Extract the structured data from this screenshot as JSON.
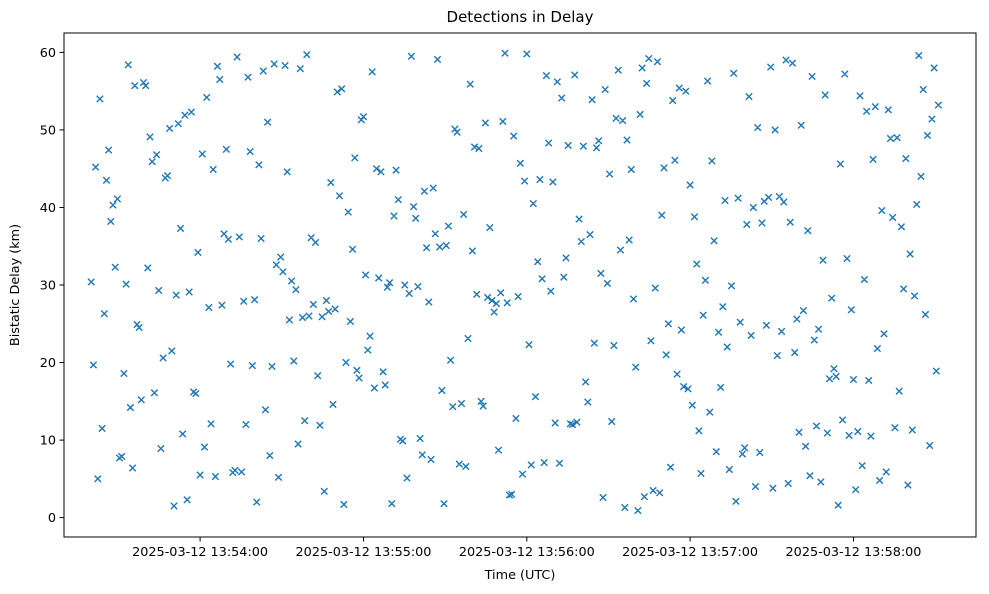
{
  "chart_data": {
    "type": "scatter",
    "title": "Detections in Delay",
    "xlabel": "Time (UTC)",
    "ylabel": "Bistatic Delay (km)",
    "marker": "x",
    "marker_color": "#1f77b4",
    "grid": false,
    "legend": "none",
    "x_unit": "seconds since 2025-03-12 13:53:00 UTC",
    "xlim": [
      10,
      345
    ],
    "ylim": [
      -2.5,
      62.5
    ],
    "x_ticks": [
      {
        "value": 60,
        "label": "2025-03-12 13:54:00"
      },
      {
        "value": 120,
        "label": "2025-03-12 13:55:00"
      },
      {
        "value": 180,
        "label": "2025-03-12 13:56:00"
      },
      {
        "value": 240,
        "label": "2025-03-12 13:57:00"
      },
      {
        "value": 300,
        "label": "2025-03-12 13:58:00"
      }
    ],
    "y_ticks": [
      0,
      10,
      20,
      30,
      40,
      50,
      60
    ],
    "points": [
      [
        20,
        30.4
      ],
      [
        20.8,
        19.7
      ],
      [
        21.6,
        45.2
      ],
      [
        22.4,
        5
      ],
      [
        23.2,
        54
      ],
      [
        24,
        11.5
      ],
      [
        24.8,
        26.3
      ],
      [
        25.6,
        43.5
      ],
      [
        26.4,
        47.4
      ],
      [
        27.2,
        38.2
      ],
      [
        28,
        40.3
      ],
      [
        28.8,
        32.3
      ],
      [
        29.6,
        41.1
      ],
      [
        30.4,
        7.7
      ],
      [
        31.2,
        7.9
      ],
      [
        32,
        18.6
      ],
      [
        32.8,
        30.1
      ],
      [
        33.6,
        58.4
      ],
      [
        34.4,
        14.2
      ],
      [
        35.2,
        6.4
      ],
      [
        36,
        55.7
      ],
      [
        36.8,
        24.9
      ],
      [
        37.6,
        24.5
      ],
      [
        38.4,
        15.2
      ],
      [
        39.2,
        56.1
      ],
      [
        40,
        55.7
      ],
      [
        40.8,
        32.2
      ],
      [
        41.6,
        49.1
      ],
      [
        42.4,
        45.9
      ],
      [
        43.2,
        16.1
      ],
      [
        44,
        46.8
      ],
      [
        44.8,
        29.3
      ],
      [
        45.6,
        8.9
      ],
      [
        46.4,
        20.6
      ],
      [
        47.2,
        43.8
      ],
      [
        48,
        44.1
      ],
      [
        48.8,
        50.2
      ],
      [
        49.6,
        21.5
      ],
      [
        50.4,
        1.5
      ],
      [
        51.2,
        28.7
      ],
      [
        52,
        50.8
      ],
      [
        52.8,
        37.3
      ],
      [
        53.6,
        10.8
      ],
      [
        54.4,
        51.9
      ],
      [
        55.2,
        2.3
      ],
      [
        56,
        29.1
      ],
      [
        56.8,
        52.3
      ],
      [
        57.6,
        16.2
      ],
      [
        58.4,
        16
      ],
      [
        59.2,
        34.2
      ],
      [
        60,
        5.5
      ],
      [
        60.8,
        46.9
      ],
      [
        61.6,
        9.1
      ],
      [
        62.4,
        54.2
      ],
      [
        63.2,
        27.1
      ],
      [
        64,
        12.1
      ],
      [
        64.8,
        44.9
      ],
      [
        65.6,
        5.3
      ],
      [
        66.4,
        58.2
      ],
      [
        67.2,
        56.5
      ],
      [
        68,
        27.4
      ],
      [
        68.8,
        36.6
      ],
      [
        69.6,
        47.5
      ],
      [
        70.4,
        35.9
      ],
      [
        71.2,
        19.8
      ],
      [
        72,
        5.8
      ],
      [
        72.8,
        6.1
      ],
      [
        73.6,
        59.4
      ],
      [
        74.4,
        36.2
      ],
      [
        75.2,
        5.9
      ],
      [
        76,
        27.9
      ],
      [
        76.8,
        12
      ],
      [
        77.6,
        56.8
      ],
      [
        78.4,
        47.2
      ],
      [
        79.2,
        19.6
      ],
      [
        80,
        28.1
      ],
      [
        80.8,
        2
      ],
      [
        81.6,
        45.5
      ],
      [
        82.4,
        36
      ],
      [
        83.2,
        57.6
      ],
      [
        84,
        13.9
      ],
      [
        84.8,
        51
      ],
      [
        85.6,
        8
      ],
      [
        86.4,
        19.5
      ],
      [
        87.2,
        58.5
      ],
      [
        88,
        32.6
      ],
      [
        88.8,
        5.2
      ],
      [
        89.6,
        33.6
      ],
      [
        90.4,
        31.7
      ],
      [
        91.2,
        58.3
      ],
      [
        92,
        44.6
      ],
      [
        92.8,
        25.5
      ],
      [
        93.6,
        30.5
      ],
      [
        94.4,
        20.2
      ],
      [
        95.2,
        29.4
      ],
      [
        96,
        9.5
      ],
      [
        96.8,
        57.9
      ],
      [
        97.6,
        25.8
      ],
      [
        98.4,
        12.5
      ],
      [
        99.2,
        59.7
      ],
      [
        100,
        26
      ],
      [
        100.8,
        36.1
      ],
      [
        101.6,
        27.5
      ],
      [
        102.4,
        35.5
      ],
      [
        103.2,
        18.3
      ],
      [
        104,
        11.9
      ],
      [
        104.8,
        25.9
      ],
      [
        105.6,
        3.4
      ],
      [
        106.4,
        28
      ],
      [
        107.2,
        26.6
      ],
      [
        108,
        43.2
      ],
      [
        108.8,
        14.6
      ],
      [
        109.6,
        26.9
      ],
      [
        110.4,
        54.9
      ],
      [
        111.2,
        41.5
      ],
      [
        112,
        55.3
      ],
      [
        112.8,
        1.7
      ],
      [
        113.6,
        20
      ],
      [
        114.4,
        39.4
      ],
      [
        115.2,
        25.3
      ],
      [
        116,
        34.6
      ],
      [
        116.8,
        46.4
      ],
      [
        117.6,
        19
      ],
      [
        118.4,
        18
      ],
      [
        119.2,
        51.3
      ],
      [
        120,
        51.7
      ],
      [
        120.8,
        31.3
      ],
      [
        121.6,
        21.6
      ],
      [
        122.4,
        23.4
      ],
      [
        123.2,
        57.5
      ],
      [
        124,
        16.7
      ],
      [
        124.8,
        45
      ],
      [
        125.6,
        30.9
      ],
      [
        126.4,
        44.6
      ],
      [
        127.2,
        18.8
      ],
      [
        128,
        17.1
      ],
      [
        128.8,
        29.7
      ],
      [
        129.6,
        30.3
      ],
      [
        130.4,
        1.8
      ],
      [
        131.2,
        38.9
      ],
      [
        132,
        44.8
      ],
      [
        132.8,
        41
      ],
      [
        133.6,
        10.1
      ],
      [
        134.4,
        9.9
      ],
      [
        135.2,
        30
      ],
      [
        136,
        5.1
      ],
      [
        136.8,
        28.9
      ],
      [
        137.6,
        59.5
      ],
      [
        138.4,
        40.1
      ],
      [
        139.2,
        38.6
      ],
      [
        140,
        29.8
      ],
      [
        140.8,
        10.2
      ],
      [
        141.6,
        8.1
      ],
      [
        142.4,
        42.1
      ],
      [
        143.2,
        34.8
      ],
      [
        144,
        27.8
      ],
      [
        144.8,
        7.5
      ],
      [
        145.6,
        42.5
      ],
      [
        146.4,
        36.6
      ],
      [
        147.2,
        59.1
      ],
      [
        148,
        34.9
      ],
      [
        148.8,
        16.4
      ],
      [
        149.6,
        1.8
      ],
      [
        150.4,
        35.1
      ],
      [
        151.2,
        37.6
      ],
      [
        152,
        20.3
      ],
      [
        152.8,
        14.3
      ],
      [
        153.6,
        50.1
      ],
      [
        154.4,
        49.7
      ],
      [
        155.2,
        6.9
      ],
      [
        156,
        14.7
      ],
      [
        156.8,
        39.1
      ],
      [
        157.6,
        6.6
      ],
      [
        158.4,
        23.1
      ],
      [
        159.2,
        55.9
      ],
      [
        160,
        34.4
      ],
      [
        160.8,
        47.8
      ],
      [
        161.6,
        28.8
      ],
      [
        162.4,
        47.6
      ],
      [
        163.2,
        15
      ],
      [
        164,
        14.4
      ],
      [
        164.8,
        50.9
      ],
      [
        165.6,
        28.4
      ],
      [
        166.4,
        37.4
      ],
      [
        167.2,
        28
      ],
      [
        168,
        26.5
      ],
      [
        168.8,
        27.6
      ],
      [
        169.6,
        8.7
      ],
      [
        170.4,
        29
      ],
      [
        171.2,
        51.1
      ],
      [
        172,
        59.9
      ],
      [
        172.8,
        27.7
      ],
      [
        173.6,
        2.9
      ],
      [
        174.4,
        3
      ],
      [
        175.2,
        49.2
      ],
      [
        176,
        12.8
      ],
      [
        176.8,
        28.5
      ],
      [
        177.6,
        45.7
      ],
      [
        178.4,
        5.6
      ],
      [
        179.2,
        43.4
      ],
      [
        180,
        59.8
      ],
      [
        180.8,
        22.3
      ],
      [
        181.6,
        6.8
      ],
      [
        182.4,
        40.5
      ],
      [
        183.2,
        15.6
      ],
      [
        184,
        33
      ],
      [
        184.8,
        43.6
      ],
      [
        185.6,
        30.8
      ],
      [
        186.4,
        7.1
      ],
      [
        187.2,
        57
      ],
      [
        188,
        48.3
      ],
      [
        188.8,
        29.2
      ],
      [
        189.6,
        43.3
      ],
      [
        190.4,
        12.2
      ],
      [
        191.2,
        56.2
      ],
      [
        192,
        7
      ],
      [
        192.8,
        54.1
      ],
      [
        193.6,
        31
      ],
      [
        194.4,
        33.5
      ],
      [
        195.2,
        48
      ],
      [
        196,
        12.1
      ],
      [
        196.8,
        12
      ],
      [
        197.6,
        57.1
      ],
      [
        198.4,
        12.3
      ],
      [
        199.2,
        38.5
      ],
      [
        200,
        35.6
      ],
      [
        200.8,
        47.9
      ],
      [
        201.6,
        17.5
      ],
      [
        202.4,
        14.9
      ],
      [
        203.2,
        36.5
      ],
      [
        204,
        53.9
      ],
      [
        204.8,
        22.5
      ],
      [
        205.6,
        47.7
      ],
      [
        206.4,
        48.6
      ],
      [
        207.2,
        31.5
      ],
      [
        208,
        2.6
      ],
      [
        208.8,
        55.2
      ],
      [
        209.6,
        30.2
      ],
      [
        210.4,
        44.3
      ],
      [
        211.2,
        12.4
      ],
      [
        212,
        22.2
      ],
      [
        212.8,
        51.5
      ],
      [
        213.6,
        57.7
      ],
      [
        214.4,
        34.5
      ],
      [
        215.2,
        51.2
      ],
      [
        216,
        1.3
      ],
      [
        216.8,
        48.7
      ],
      [
        217.6,
        35.8
      ],
      [
        218.4,
        44.9
      ],
      [
        219.2,
        28.2
      ],
      [
        220,
        19.4
      ],
      [
        220.8,
        0.9
      ],
      [
        221.6,
        52
      ],
      [
        222.4,
        58
      ],
      [
        223.2,
        2.7
      ],
      [
        224,
        56
      ],
      [
        224.8,
        59.2
      ],
      [
        225.6,
        22.8
      ],
      [
        226.4,
        3.5
      ],
      [
        227.2,
        29.6
      ],
      [
        228,
        58.8
      ],
      [
        228.8,
        3.2
      ],
      [
        229.6,
        39
      ],
      [
        230.4,
        45.1
      ],
      [
        231.2,
        21
      ],
      [
        232,
        25
      ],
      [
        232.8,
        6.5
      ],
      [
        233.6,
        53.8
      ],
      [
        234.4,
        46.1
      ],
      [
        235.2,
        18.5
      ],
      [
        236,
        55.4
      ],
      [
        236.8,
        24.2
      ],
      [
        237.6,
        16.9
      ],
      [
        238.4,
        55
      ],
      [
        239.2,
        16.6
      ],
      [
        240,
        42.9
      ],
      [
        240.8,
        14.5
      ],
      [
        241.6,
        38.8
      ],
      [
        242.4,
        32.7
      ],
      [
        243.2,
        11.2
      ],
      [
        244,
        5.7
      ],
      [
        244.8,
        26.1
      ],
      [
        245.6,
        30.6
      ],
      [
        246.4,
        56.3
      ],
      [
        247.2,
        13.6
      ],
      [
        248,
        46
      ],
      [
        248.8,
        35.7
      ],
      [
        249.6,
        8.5
      ],
      [
        250.4,
        23.9
      ],
      [
        251.2,
        16.8
      ],
      [
        252,
        27.2
      ],
      [
        252.8,
        40.9
      ],
      [
        253.6,
        22
      ],
      [
        254.4,
        6.2
      ],
      [
        255.2,
        29.9
      ],
      [
        256,
        57.3
      ],
      [
        256.8,
        2.1
      ],
      [
        257.6,
        41.2
      ],
      [
        258.4,
        25.2
      ],
      [
        259.2,
        8.2
      ],
      [
        260,
        9
      ],
      [
        260.8,
        37.8
      ],
      [
        261.6,
        54.3
      ],
      [
        262.4,
        23.5
      ],
      [
        263.2,
        40
      ],
      [
        264,
        4
      ],
      [
        264.8,
        50.3
      ],
      [
        265.6,
        8.4
      ],
      [
        266.4,
        38
      ],
      [
        267.2,
        40.8
      ],
      [
        268,
        24.8
      ],
      [
        268.8,
        41.3
      ],
      [
        269.6,
        58.1
      ],
      [
        270.4,
        3.8
      ],
      [
        271.2,
        50
      ],
      [
        272,
        20.9
      ],
      [
        272.8,
        41.4
      ],
      [
        273.6,
        24
      ],
      [
        274.4,
        40.7
      ],
      [
        275.2,
        59
      ],
      [
        276,
        4.4
      ],
      [
        276.8,
        38.1
      ],
      [
        277.6,
        58.6
      ],
      [
        278.4,
        21.3
      ],
      [
        279.2,
        25.6
      ],
      [
        280,
        11
      ],
      [
        280.8,
        50.6
      ],
      [
        281.6,
        26.7
      ],
      [
        282.4,
        9.2
      ],
      [
        283.2,
        37
      ],
      [
        284,
        5.4
      ],
      [
        284.8,
        56.9
      ],
      [
        285.6,
        22.9
      ],
      [
        286.4,
        11.8
      ],
      [
        287.2,
        24.3
      ],
      [
        288,
        4.6
      ],
      [
        288.8,
        33.2
      ],
      [
        289.6,
        54.5
      ],
      [
        290.4,
        10.9
      ],
      [
        291.2,
        17.9
      ],
      [
        292,
        28.3
      ],
      [
        292.8,
        19.2
      ],
      [
        293.6,
        18.2
      ],
      [
        294.4,
        1.6
      ],
      [
        295.2,
        45.6
      ],
      [
        296,
        12.6
      ],
      [
        296.8,
        57.2
      ],
      [
        297.6,
        33.4
      ],
      [
        298.4,
        10.6
      ],
      [
        299.2,
        26.8
      ],
      [
        300,
        17.8
      ],
      [
        300.8,
        3.6
      ],
      [
        301.6,
        11.1
      ],
      [
        302.4,
        54.4
      ],
      [
        303.2,
        6.7
      ],
      [
        304,
        30.7
      ],
      [
        304.8,
        52.4
      ],
      [
        305.6,
        17.7
      ],
      [
        306.4,
        10.5
      ],
      [
        307.2,
        46.2
      ],
      [
        308,
        53
      ],
      [
        308.8,
        21.8
      ],
      [
        309.6,
        4.8
      ],
      [
        310.4,
        39.6
      ],
      [
        311.2,
        23.7
      ],
      [
        312,
        5.9
      ],
      [
        312.8,
        52.6
      ],
      [
        313.6,
        48.9
      ],
      [
        314.4,
        38.7
      ],
      [
        315.2,
        11.6
      ],
      [
        316,
        49
      ],
      [
        316.8,
        16.3
      ],
      [
        317.6,
        37.5
      ],
      [
        318.4,
        29.5
      ],
      [
        319.2,
        46.3
      ],
      [
        320,
        4.2
      ],
      [
        320.8,
        34
      ],
      [
        321.6,
        11.3
      ],
      [
        322.4,
        28.6
      ],
      [
        323.2,
        40.4
      ],
      [
        324,
        59.6
      ],
      [
        324.8,
        44
      ],
      [
        325.6,
        55.2
      ],
      [
        326.4,
        26.2
      ],
      [
        327.2,
        49.3
      ],
      [
        328,
        9.3
      ],
      [
        328.8,
        51.4
      ],
      [
        329.6,
        58
      ],
      [
        330.4,
        18.9
      ],
      [
        331.2,
        53.2
      ]
    ]
  }
}
